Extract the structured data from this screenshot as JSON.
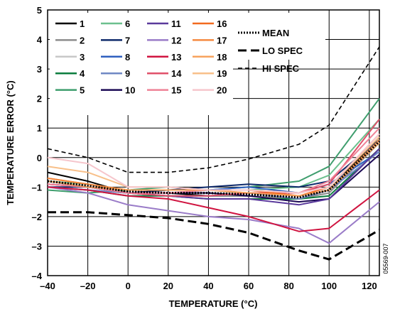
{
  "chart_data": {
    "type": "line",
    "title": "",
    "xlabel": "TEMPERATURE (°C)",
    "ylabel": "TEMPERATURE ERROR (°C)",
    "xlim": [
      -40,
      125
    ],
    "ylim": [
      -4,
      5
    ],
    "xticks": [
      -40,
      -20,
      0,
      20,
      40,
      60,
      80,
      100,
      120
    ],
    "xtick_labels": [
      "–40",
      "–20",
      "0",
      "20",
      "40",
      "60",
      "80",
      "100",
      "120"
    ],
    "yticks": [
      5,
      4,
      3,
      2,
      1,
      0,
      -1,
      -2,
      -3,
      -4
    ],
    "ytick_labels": [
      "5",
      "4",
      "3",
      "2",
      "1",
      "0",
      "–1",
      "–2",
      "–3",
      "–4"
    ],
    "vgrid": [
      -20,
      0,
      20,
      40,
      60,
      80,
      100,
      120
    ],
    "hgrid": [
      4,
      3,
      2,
      1,
      0,
      -1,
      -2,
      -3
    ],
    "grid": true,
    "legend_position": "top-left",
    "x": [
      -40,
      -20,
      0,
      20,
      40,
      60,
      85,
      100,
      125
    ],
    "series": [
      {
        "name": "1",
        "color": "#000000",
        "values": [
          -0.5,
          -0.8,
          -1.2,
          -1.2,
          -1.3,
          -1.3,
          -1.4,
          -1.1,
          0.7
        ]
      },
      {
        "name": "2",
        "color": "#8c8c8c",
        "values": [
          -0.9,
          -1.0,
          -1.2,
          -1.3,
          -1.3,
          -1.3,
          -1.4,
          -1.2,
          0.5
        ]
      },
      {
        "name": "3",
        "color": "#c8c8c8",
        "values": [
          -0.8,
          -1.0,
          -1.1,
          -1.2,
          -1.2,
          -1.2,
          -1.3,
          -1.1,
          0.6
        ]
      },
      {
        "name": "4",
        "color": "#0b7d3e",
        "values": [
          -1.0,
          -1.1,
          -1.3,
          -1.3,
          -1.4,
          -1.4,
          -1.4,
          -1.3,
          0.3
        ]
      },
      {
        "name": "5",
        "color": "#3f9e6e",
        "values": [
          -1.1,
          -1.2,
          -1.1,
          -1.0,
          -1.1,
          -1.0,
          -0.8,
          -0.3,
          2.0
        ]
      },
      {
        "name": "6",
        "color": "#6cc08e",
        "values": [
          -0.8,
          -0.9,
          -1.1,
          -1.1,
          -1.1,
          -1.1,
          -1.0,
          -0.6,
          1.3
        ]
      },
      {
        "name": "7",
        "color": "#0e2a6b",
        "values": [
          -1.0,
          -1.0,
          -1.2,
          -1.1,
          -1.0,
          -0.9,
          -1.0,
          -0.8,
          0.6
        ]
      },
      {
        "name": "8",
        "color": "#2f5fbf",
        "values": [
          -1.0,
          -1.1,
          -1.2,
          -1.2,
          -1.1,
          -1.0,
          -1.2,
          -0.9,
          0.2
        ]
      },
      {
        "name": "9",
        "color": "#6f88c4",
        "values": [
          -1.0,
          -1.1,
          -1.2,
          -1.3,
          -1.3,
          -1.2,
          -1.4,
          -1.1,
          0.2
        ]
      },
      {
        "name": "10",
        "color": "#1c0a55",
        "values": [
          -0.8,
          -1.0,
          -1.2,
          -1.2,
          -1.2,
          -1.3,
          -1.5,
          -1.4,
          0.1
        ]
      },
      {
        "name": "11",
        "color": "#5a3a9c",
        "values": [
          -0.9,
          -1.0,
          -1.2,
          -1.3,
          -1.4,
          -1.4,
          -1.6,
          -1.4,
          0.3
        ]
      },
      {
        "name": "12",
        "color": "#9a7cc8",
        "values": [
          -1.0,
          -1.2,
          -1.6,
          -1.8,
          -2.0,
          -2.1,
          -2.4,
          -2.9,
          -1.5
        ]
      },
      {
        "name": "13",
        "color": "#d01440",
        "values": [
          -1.0,
          -1.1,
          -1.3,
          -1.4,
          -1.7,
          -2.0,
          -2.5,
          -2.4,
          -1.1
        ]
      },
      {
        "name": "14",
        "color": "#e0506a",
        "values": [
          -0.9,
          -1.0,
          -1.2,
          -1.3,
          -1.3,
          -1.2,
          -1.2,
          -0.9,
          1.3
        ]
      },
      {
        "name": "15",
        "color": "#ef8296",
        "values": [
          -0.9,
          -1.0,
          -1.2,
          -1.2,
          -1.1,
          -1.1,
          -1.2,
          -0.8,
          1.0
        ]
      },
      {
        "name": "16",
        "color": "#f26a1f",
        "values": [
          -0.7,
          -0.9,
          -1.1,
          -1.1,
          -1.1,
          -1.1,
          -1.3,
          -1.0,
          0.8
        ]
      },
      {
        "name": "17",
        "color": "#f58a40",
        "values": [
          -0.7,
          -0.9,
          -1.1,
          -1.1,
          -1.1,
          -1.2,
          -1.3,
          -1.1,
          0.6
        ]
      },
      {
        "name": "18",
        "color": "#f7a35e",
        "values": [
          -0.8,
          -1.0,
          -1.1,
          -1.1,
          -1.1,
          -1.2,
          -1.3,
          -1.1,
          0.5
        ]
      },
      {
        "name": "19",
        "color": "#f8c08a",
        "values": [
          -0.3,
          -0.5,
          -1.0,
          -1.0,
          -1.1,
          -1.1,
          -1.2,
          -1.0,
          0.7
        ]
      },
      {
        "name": "20",
        "color": "#f6c6cc",
        "values": [
          0.0,
          -0.2,
          -1.0,
          -1.0,
          -1.1,
          -1.1,
          -1.2,
          -1.0,
          0.8
        ]
      }
    ],
    "reference_lines": [
      {
        "name": "MEAN",
        "style": "dotted",
        "color": "#000000",
        "x": [
          -40,
          -20,
          0,
          20,
          40,
          60,
          85,
          100,
          125
        ],
        "values": [
          -0.8,
          -0.95,
          -1.15,
          -1.2,
          -1.2,
          -1.25,
          -1.35,
          -1.1,
          0.55
        ]
      },
      {
        "name": "LO SPEC",
        "style": "long-dash",
        "color": "#000000",
        "x": [
          -40,
          -20,
          0,
          20,
          40,
          60,
          85,
          100,
          125
        ],
        "values": [
          -1.85,
          -1.85,
          -1.95,
          -2.05,
          -2.25,
          -2.55,
          -3.15,
          -3.45,
          -2.45
        ]
      },
      {
        "name": "HI SPEC",
        "style": "short-dash",
        "color": "#000000",
        "x": [
          -40,
          -20,
          0,
          20,
          40,
          60,
          85,
          100,
          125
        ],
        "values": [
          0.3,
          0.0,
          -0.5,
          -0.5,
          -0.35,
          -0.05,
          0.45,
          1.1,
          3.75
        ]
      }
    ],
    "side_code": "05569-007"
  }
}
